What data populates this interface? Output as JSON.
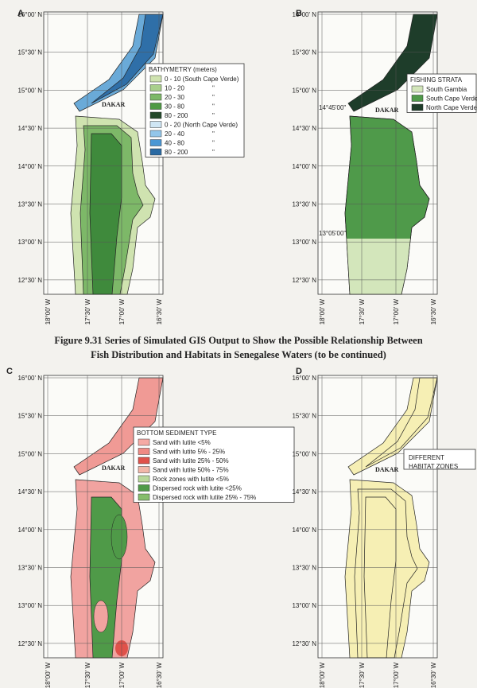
{
  "caption": [
    "Figure 9.31   Series of Simulated GIS Output to Show the Possible Relationship Between",
    "Fish Distribution and Habitats in Senegalese Waters  (to be continued)"
  ],
  "panels": [
    {
      "label": "A",
      "place": "DAKAR",
      "latitudes": [
        "16°00' N",
        "15°30' N",
        "15°00' N",
        "14°30' N",
        "14°00' N",
        "13°30' N",
        "13°00' N",
        "12°30' N"
      ],
      "longitudes": [
        "18°00' W",
        "17°30' W",
        "17°00' W",
        "16°30' W"
      ],
      "legend": {
        "title": "BATHYMETRY (meters)",
        "items": [
          {
            "label": "0 - 10 (South Cape Verde)",
            "color": "#cfe3b0"
          },
          {
            "label": "10 - 20",
            "mark": "\"",
            "color": "#a9cf8c"
          },
          {
            "label": "20 - 30",
            "mark": "\"",
            "color": "#7db868"
          },
          {
            "label": "30 - 80",
            "mark": "\"",
            "color": "#4f9a45"
          },
          {
            "label": "80 - 200",
            "mark": "\"",
            "color": "#23492a"
          },
          {
            "label": "0 - 20 (North Cape Verde)",
            "color": "#cfe6f5"
          },
          {
            "label": "20 - 40",
            "mark": "\"",
            "color": "#93c6ea"
          },
          {
            "label": "40 - 80",
            "mark": "\"",
            "color": "#4a97d4"
          },
          {
            "label": "80 - 200",
            "mark": "\"",
            "color": "#2a6aa3"
          }
        ]
      }
    },
    {
      "label": "B",
      "place": "DAKAR",
      "latitudes": [
        "16°00' N",
        "15°30' N",
        "15°00' N",
        "14°30' N",
        "14°00' N",
        "13°30' N",
        "13°00' N",
        "12°30' N"
      ],
      "longitudes": [
        "18°00' W",
        "17°30' W",
        "17°00' W",
        "16°30' W"
      ],
      "boundaries": [
        "14°45'00\"",
        "13°05'00\""
      ],
      "legend": {
        "title": "FISHING STRATA",
        "items": [
          {
            "label": "South Gambia",
            "color": "#d3e6bb"
          },
          {
            "label": "South Cape Verde",
            "color": "#4f9a4a"
          },
          {
            "label": "North Cape Verde",
            "color": "#1e3d2a"
          }
        ]
      }
    },
    {
      "label": "C",
      "place": "DAKAR",
      "latitudes": [
        "16°00' N",
        "15°30' N",
        "15°00' N",
        "14°30' N",
        "14°00' N",
        "13°30' N",
        "13°00' N",
        "12°30' N"
      ],
      "longitudes": [
        "18°00' W",
        "17°30' W",
        "17°00' W",
        "16°30' W"
      ],
      "legend": {
        "title": "BOTTOM SEDIMENT TYPE",
        "items": [
          {
            "label": "Sand with lutite <5%",
            "color": "#f5a9a4"
          },
          {
            "label": "Sand with lutite 5% - 25%",
            "color": "#ef8a84"
          },
          {
            "label": "Sand with lutite 25% - 50%",
            "color": "#e0524a"
          },
          {
            "label": "Sand with lutite 50% - 75%",
            "color": "#f2b7a8"
          },
          {
            "label": "Rock zones with lutite <5%",
            "color": "#b8d89a"
          },
          {
            "label": "Dispersed rock with lutite <25%",
            "color": "#4f9a48"
          },
          {
            "label": "Dispersed rock with lutite 25% - 75%",
            "color": "#86bd6c"
          }
        ]
      }
    },
    {
      "label": "D",
      "place": "DAKAR",
      "latitudes": [
        "16°00' N",
        "15°30' N",
        "15°00' N",
        "14°30' N",
        "14°00' N",
        "13°30' N",
        "13°00' N",
        "12°30' N"
      ],
      "longitudes": [
        "18°00' W",
        "17°30' W",
        "17°00' W",
        "16°30' W"
      ],
      "legend": {
        "title_lines": [
          "DIFFERENT",
          "HABITAT ZONES"
        ]
      }
    }
  ]
}
